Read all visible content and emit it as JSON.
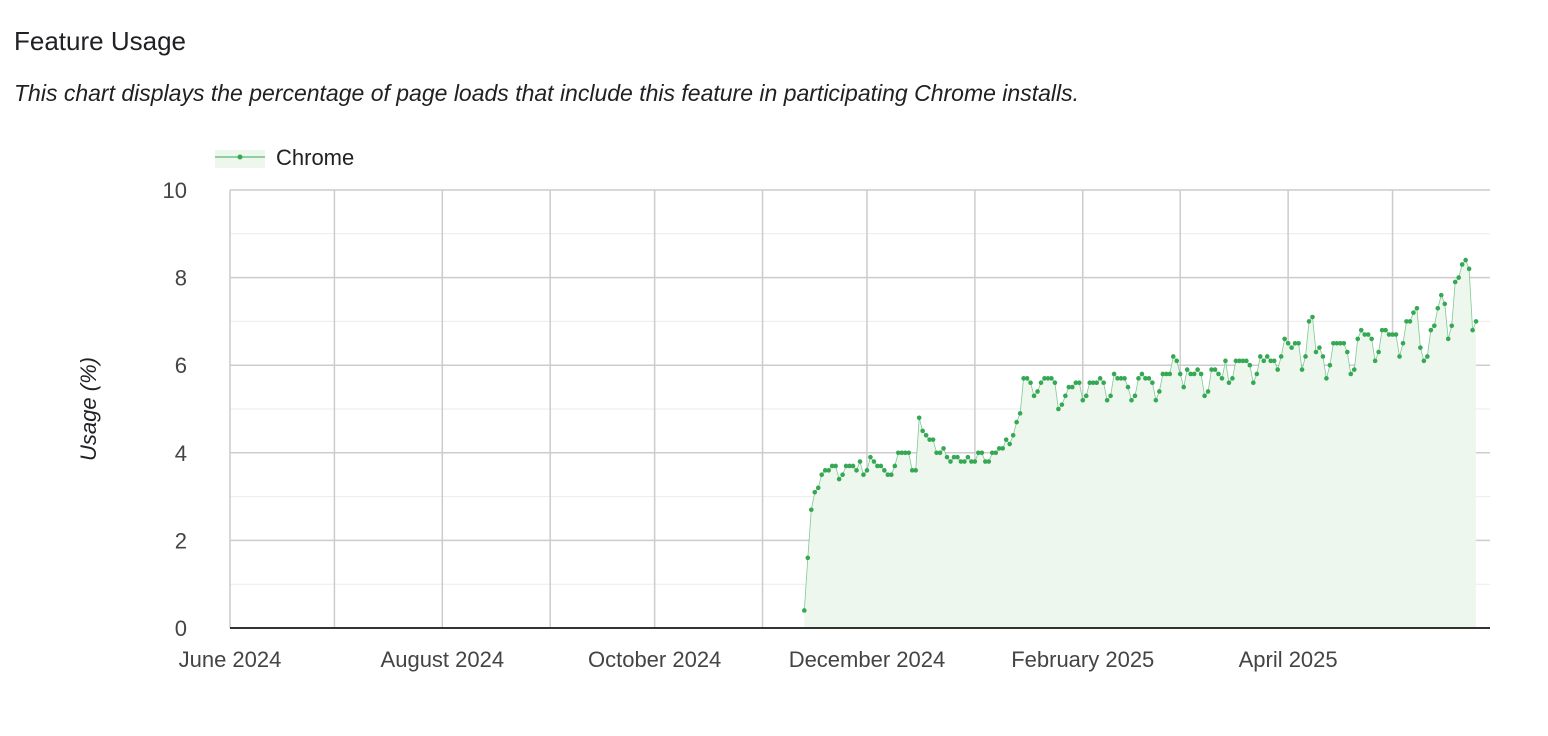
{
  "header": {
    "title": "Feature Usage",
    "subtitle": "This chart displays the percentage of page loads that include this feature in participating Chrome installs."
  },
  "chart_data": {
    "type": "area",
    "title": "",
    "xlabel": "",
    "ylabel": "Usage (%)",
    "xlim": [
      "2024-06-01",
      "2025-05-29"
    ],
    "ylim": [
      0,
      10
    ],
    "yticks": [
      "0",
      "2",
      "4",
      "6",
      "8",
      "10"
    ],
    "xtick_dates": [
      "2024-06-01",
      "2024-08-01",
      "2024-10-01",
      "2024-12-01",
      "2025-02-01",
      "2025-04-01"
    ],
    "xtick_labels": [
      "June 2024",
      "August 2024",
      "October 2024",
      "December 2024",
      "February 2025",
      "April 2025"
    ],
    "grid": true,
    "legend": "top-left",
    "series": [
      {
        "name": "Chrome",
        "color": "#34a853",
        "fill": "#edf7ee",
        "x_start": "2024-11-13",
        "x_step_days": 1,
        "values": [
          0.4,
          1.6,
          2.7,
          3.1,
          3.2,
          3.5,
          3.6,
          3.6,
          3.7,
          3.7,
          3.4,
          3.5,
          3.7,
          3.7,
          3.7,
          3.6,
          3.8,
          3.5,
          3.6,
          3.9,
          3.8,
          3.7,
          3.7,
          3.6,
          3.5,
          3.5,
          3.7,
          4.0,
          4.0,
          4.0,
          4.0,
          3.6,
          3.6,
          4.8,
          4.5,
          4.4,
          4.3,
          4.3,
          4.0,
          4.0,
          4.1,
          3.9,
          3.8,
          3.9,
          3.9,
          3.8,
          3.8,
          3.9,
          3.8,
          3.8,
          4.0,
          4.0,
          3.8,
          3.8,
          4.0,
          4.0,
          4.1,
          4.1,
          4.3,
          4.2,
          4.4,
          4.7,
          4.9,
          5.7,
          5.7,
          5.6,
          5.3,
          5.4,
          5.6,
          5.7,
          5.7,
          5.7,
          5.6,
          5.0,
          5.1,
          5.3,
          5.5,
          5.5,
          5.6,
          5.6,
          5.2,
          5.3,
          5.6,
          5.6,
          5.6,
          5.7,
          5.6,
          5.2,
          5.3,
          5.8,
          5.7,
          5.7,
          5.7,
          5.5,
          5.2,
          5.3,
          5.7,
          5.8,
          5.7,
          5.7,
          5.6,
          5.2,
          5.4,
          5.8,
          5.8,
          5.8,
          6.2,
          6.1,
          5.8,
          5.5,
          5.9,
          5.8,
          5.8,
          5.9,
          5.8,
          5.3,
          5.4,
          5.9,
          5.9,
          5.8,
          5.7,
          6.1,
          5.6,
          5.7,
          6.1,
          6.1,
          6.1,
          6.1,
          6.0,
          5.6,
          5.8,
          6.2,
          6.1,
          6.2,
          6.1,
          6.1,
          5.9,
          6.2,
          6.6,
          6.5,
          6.4,
          6.5,
          6.5,
          5.9,
          6.2,
          7.0,
          7.1,
          6.3,
          6.4,
          6.2,
          5.7,
          6.0,
          6.5,
          6.5,
          6.5,
          6.5,
          6.3,
          5.8,
          5.9,
          6.6,
          6.8,
          6.7,
          6.7,
          6.6,
          6.1,
          6.3,
          6.8,
          6.8,
          6.7,
          6.7,
          6.7,
          6.2,
          6.5,
          7.0,
          7.0,
          7.2,
          7.3,
          6.4,
          6.1,
          6.2,
          6.8,
          6.9,
          7.3,
          7.6,
          7.4,
          6.6,
          6.9,
          7.9,
          8.0,
          8.3,
          8.4,
          8.2,
          6.8,
          7.0
        ]
      }
    ]
  }
}
